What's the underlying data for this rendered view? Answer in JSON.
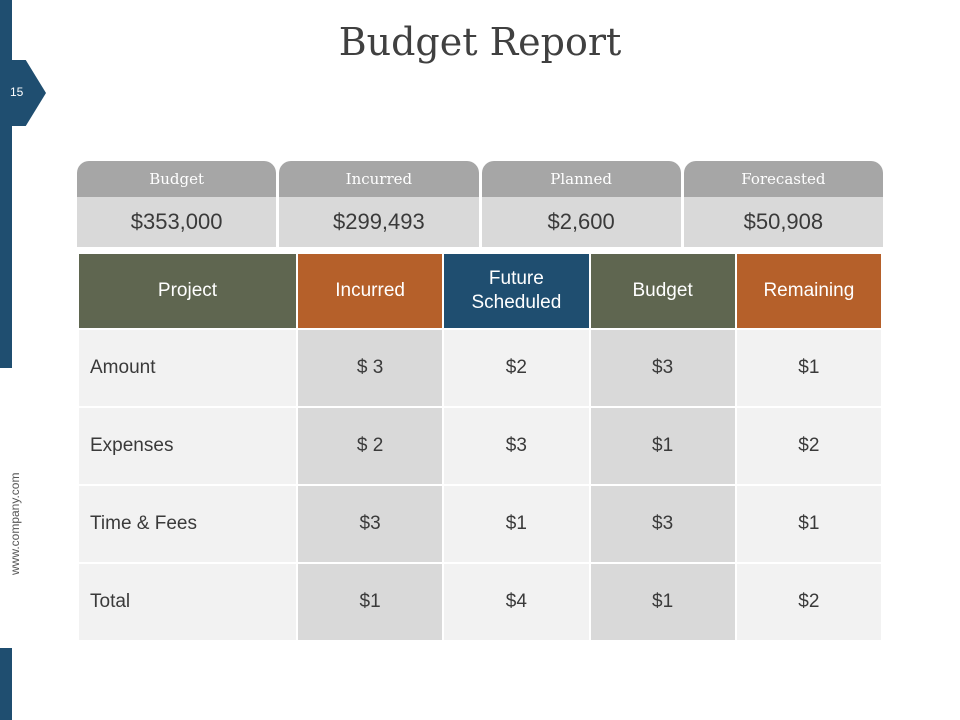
{
  "slide": {
    "title": "Budget Report",
    "page_number": "15",
    "website": "www.company.com"
  },
  "summary": [
    {
      "label": "Budget",
      "value": "$353,000"
    },
    {
      "label": "Incurred",
      "value": "$299,493"
    },
    {
      "label": "Planned",
      "value": "$2,600"
    },
    {
      "label": "Forecasted",
      "value": "$50,908"
    }
  ],
  "table": {
    "headers": [
      "Project",
      "Incurred",
      "Future Scheduled",
      "Budget",
      "Remaining"
    ],
    "rows": [
      [
        "Amount",
        "$ 3",
        "$2",
        "$3",
        "$1"
      ],
      [
        "Expenses",
        "$ 2",
        "$3",
        "$1",
        "$2"
      ],
      [
        "Time & Fees",
        "$3",
        "$1",
        "$3",
        "$1"
      ],
      [
        "Total",
        "$1",
        "$4",
        "$1",
        "$2"
      ]
    ]
  },
  "colors": {
    "sidebar": "#1f4e70",
    "olive": "#5f6650",
    "orange": "#b5602a",
    "navy": "#1f4e70",
    "tab_gray": "#a6a6a6",
    "cell_light": "#f2f2f2",
    "cell_mid": "#d9d9d9"
  }
}
